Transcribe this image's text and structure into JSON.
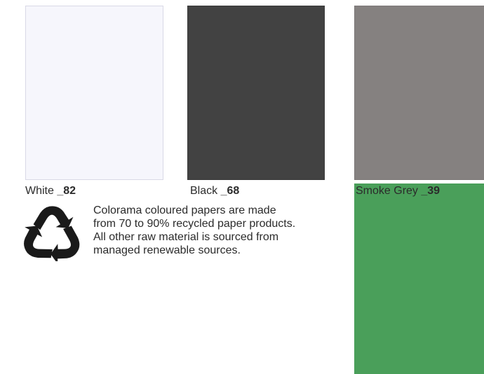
{
  "swatches": [
    {
      "name": "White",
      "code": "_82",
      "color": "#f6f6fc"
    },
    {
      "name": "Black",
      "code": "_68",
      "color": "#424242"
    },
    {
      "name": "Smoke Grey",
      "code": "_39",
      "color": "#858180"
    },
    {
      "name": "",
      "code": "",
      "color": "#4a9f5a"
    }
  ],
  "recycle_icon": "recycle-icon",
  "note": {
    "lines": [
      "Colorama coloured papers are made",
      "from 70 to 90% recycled paper products.",
      "All other raw material is sourced from",
      "managed renewable sources."
    ]
  }
}
